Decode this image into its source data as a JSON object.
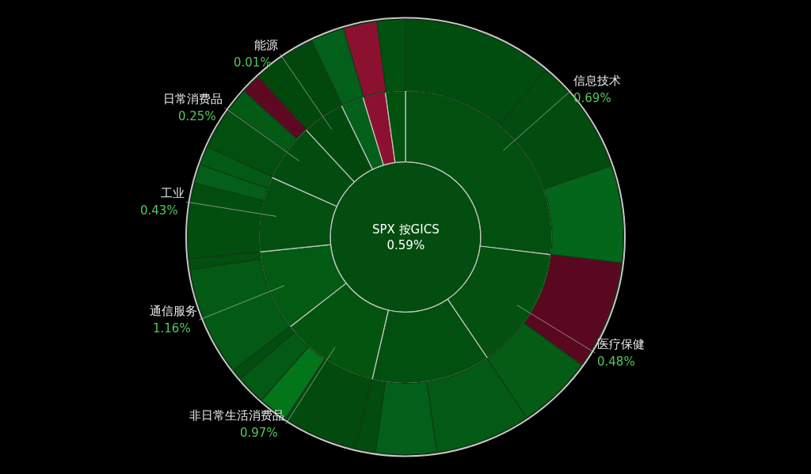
{
  "chart_data": {
    "type": "donut",
    "title": "SPX 按GICS",
    "subtitle": "0.59%",
    "annotations": [
      "0.69%",
      "0.48%",
      "0.97%",
      "1.16%",
      "0.43%",
      "0.25%",
      "0.01%"
    ],
    "categories": [
      "信息技术",
      "医疗保健",
      null,
      "非日常生活消费品",
      "通信服务",
      "工业",
      "日常消费品",
      "能源",
      null,
      null,
      null
    ],
    "series": [
      {
        "values": [
          26.9,
          13.6,
          13.1,
          10.8,
          8.9,
          8.3,
          6.4,
          4.7,
          2.5,
          2.5,
          2.2
        ],
        "colors": [
          "#034f10",
          "#03500f",
          "#02500f",
          "#03540f",
          "#035a12",
          "#034f10",
          "#034c0f",
          "#02480d",
          "#03601a",
          "#8c1131",
          "#02520f"
        ]
      },
      {
        "x": [
          null,
          null,
          null,
          null,
          null,
          null,
          null,
          null,
          null,
          null,
          null,
          null,
          null,
          null,
          null,
          null,
          null,
          null,
          null,
          null,
          null,
          null,
          null,
          null
        ],
        "values": [
          11.1,
          8.6,
          7.2,
          8.1,
          5.6,
          7.1,
          4.5,
          1.5,
          5.6,
          2.2,
          2.2,
          0.8,
          8.1,
          0.8,
          5.6,
          1.4,
          1.4,
          3.1,
          1.8,
          1.5,
          4.7,
          2.5,
          2.5,
          2.1
        ],
        "colors": [
          "#004d0f",
          "#024c10",
          "#03661a",
          "#5a0820",
          "#045c15",
          "#035a14",
          "#03601a",
          "#024c0f",
          "#024a0e",
          "#04761a",
          "#035a14",
          "#024e10",
          "#035a14",
          "#024f10",
          "#024e0f",
          "#03601a",
          "#035a14",
          "#034f10",
          "#035a14",
          "#5e0822",
          "#02480d",
          "#03601a",
          "#8c1131",
          "#02520f"
        ]
      }
    ]
  }
}
